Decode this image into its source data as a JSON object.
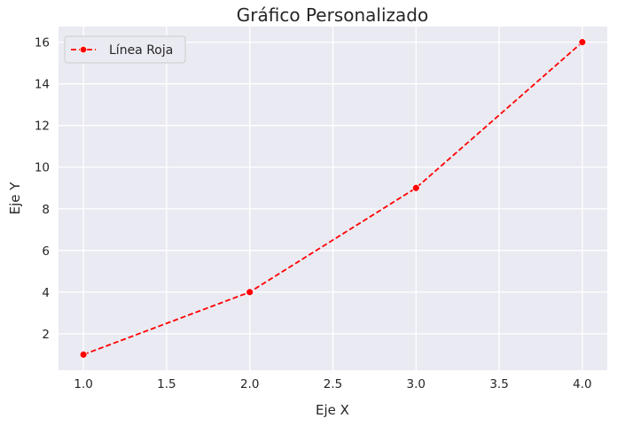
{
  "chart_data": {
    "type": "line",
    "title": "Gráfico Personalizado",
    "xlabel": "Eje X",
    "ylabel": "Eje Y",
    "xlim": [
      0.85,
      4.15
    ],
    "ylim": [
      0.25,
      16.75
    ],
    "xticks": [
      "1.0",
      "1.5",
      "2.0",
      "2.5",
      "3.0",
      "3.5",
      "4.0"
    ],
    "yticks": [
      "2",
      "4",
      "6",
      "8",
      "10",
      "12",
      "14",
      "16"
    ],
    "grid": true,
    "legend_position": "top-left",
    "series": [
      {
        "name": "Línea Roja",
        "color": "#ff0000",
        "line_style": "dashed",
        "marker": "circle",
        "x": [
          1,
          2,
          3,
          4
        ],
        "y": [
          1,
          4,
          9,
          16
        ]
      }
    ]
  }
}
